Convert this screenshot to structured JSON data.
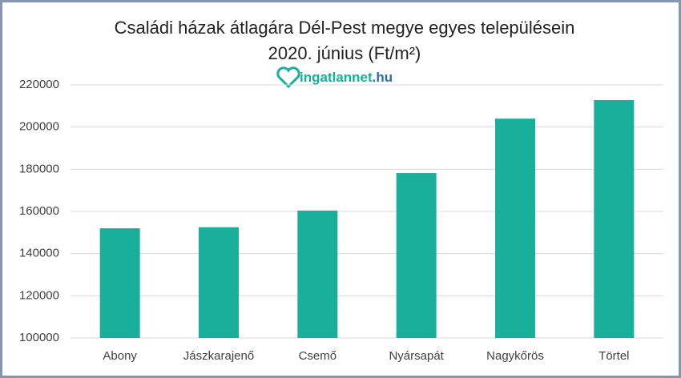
{
  "chart_data": {
    "type": "bar",
    "title": "Családi házak átlagára Dél-Pest megye egyes településein",
    "subtitle": "2020. június (Ft/m²)",
    "logo": [
      "ingatlannet",
      ".hu"
    ],
    "categories": [
      "Abony",
      "Jászkarajenő",
      "Csemő",
      "Nyársapát",
      "Nagykőrös",
      "Törtel"
    ],
    "values": [
      152000,
      152500,
      160400,
      178200,
      204000,
      212800
    ],
    "color": "#1aaf9b",
    "ylim": [
      100000,
      220000
    ],
    "yticks": [
      100000,
      120000,
      140000,
      160000,
      180000,
      200000,
      220000
    ],
    "grid": true
  }
}
